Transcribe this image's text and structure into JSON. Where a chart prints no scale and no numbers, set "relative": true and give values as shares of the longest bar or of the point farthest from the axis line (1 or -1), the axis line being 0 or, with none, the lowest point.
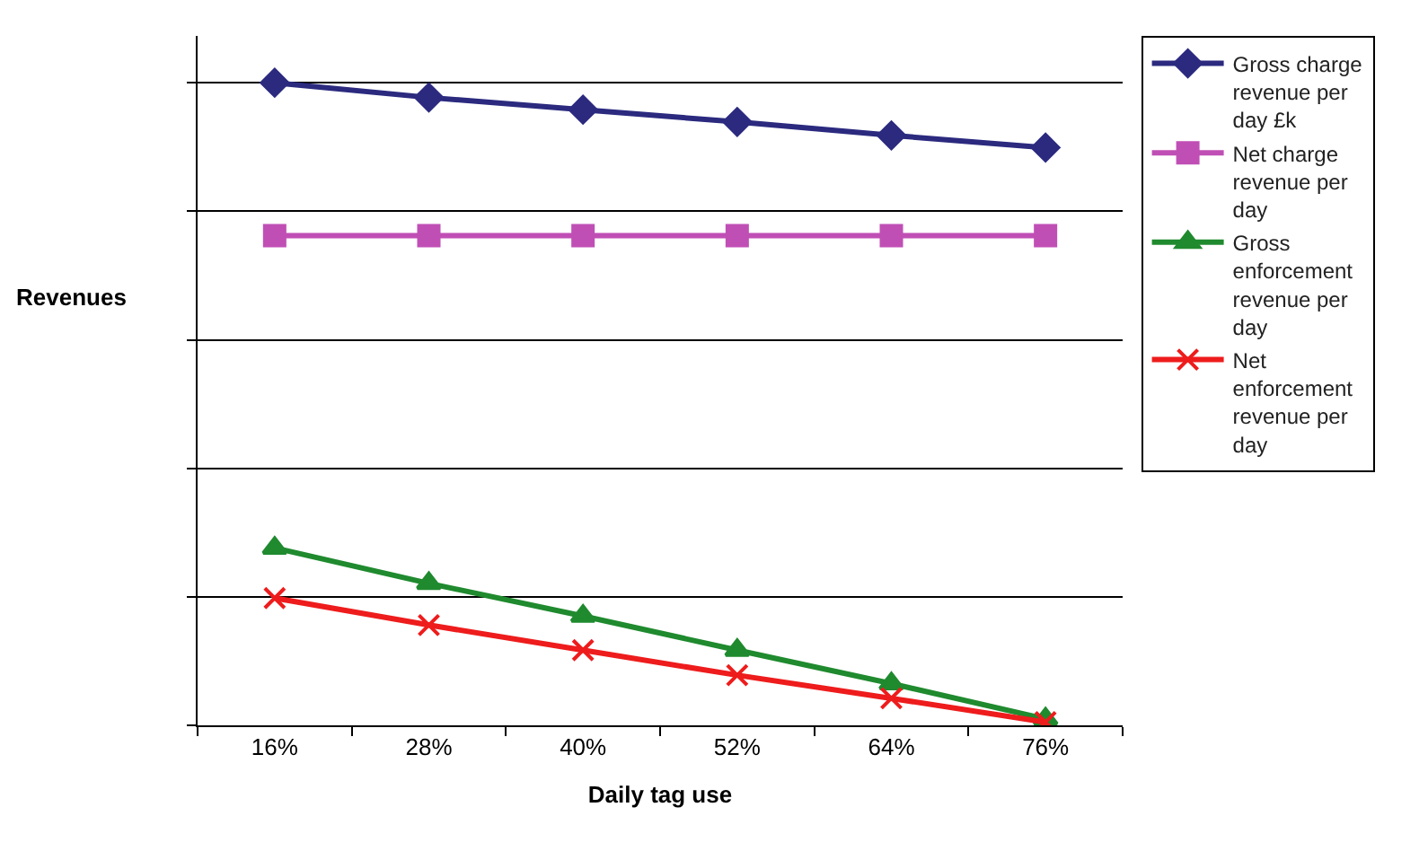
{
  "chart_data": {
    "type": "line",
    "xlabel": "Daily tag use",
    "ylabel": "Revenues",
    "categories": [
      "16%",
      "28%",
      "40%",
      "52%",
      "64%",
      "76%"
    ],
    "relative": true,
    "grid": "y",
    "legend": "right",
    "line_style": "solid",
    "series": [
      {
        "name": "Gross charge revenue per day £k",
        "color": "#2b2a7f",
        "marker": "diamond",
        "values": [
          1,
          0.977,
          0.958,
          0.939,
          0.918,
          0.899
        ]
      },
      {
        "name": "Net charge revenue per day",
        "color": "#c04fb5",
        "marker": "square",
        "values": [
          0.762,
          0.762,
          0.762,
          0.762,
          0.762,
          0.762
        ]
      },
      {
        "name": "Gross enforcement revenue per day",
        "color": "#1f8a2e",
        "marker": "triangle",
        "values": [
          0.276,
          0.221,
          0.17,
          0.117,
          0.065,
          0.01
        ]
      },
      {
        "name": "Net enforcement revenue per day",
        "color": "#ee1c1c",
        "marker": "cross",
        "values": [
          0.198,
          0.156,
          0.117,
          0.078,
          0.042,
          0.005
        ]
      }
    ]
  }
}
